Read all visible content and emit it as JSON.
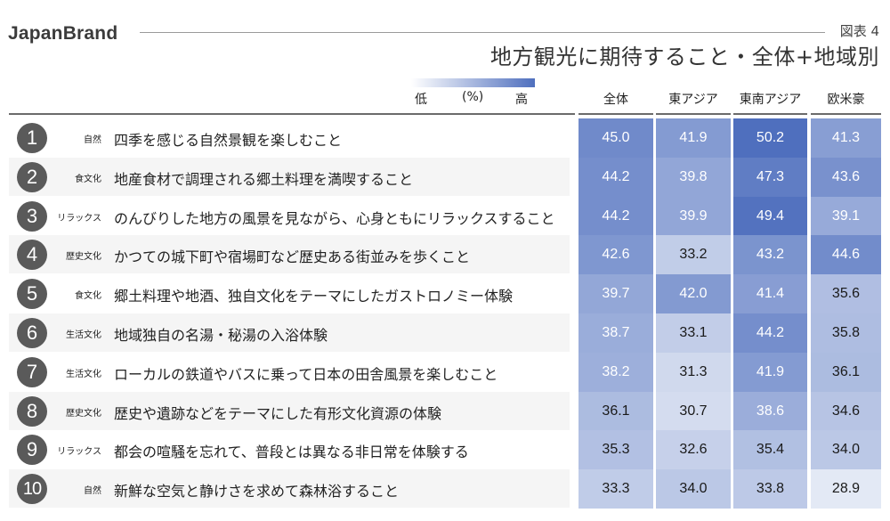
{
  "header": {
    "brand": "JapanBrand",
    "figure_label": "図表 4",
    "title": "地方観光に期待すること・全体+地域別"
  },
  "legend": {
    "low": "低",
    "unit": "(%)",
    "high": "高",
    "color_low": "#ffffff",
    "color_high": "#4f6fbe"
  },
  "columns": [
    "全体",
    "東アジア",
    "東南アジア",
    "欧米豪"
  ],
  "rows": [
    {
      "rank": "1",
      "category": "自然",
      "label": "四季を感じる自然景観を楽しむこと",
      "values": [
        "45.0",
        "41.9",
        "50.2",
        "41.3"
      ]
    },
    {
      "rank": "2",
      "category": "食文化",
      "label": "地産食材で調理される郷土料理を満喫すること",
      "values": [
        "44.2",
        "39.8",
        "47.3",
        "43.6"
      ]
    },
    {
      "rank": "3",
      "category": "リラックス",
      "label": "のんびりした地方の風景を見ながら、心身ともにリラックスすること",
      "values": [
        "44.2",
        "39.9",
        "49.4",
        "39.1"
      ]
    },
    {
      "rank": "4",
      "category": "歴史文化",
      "label": "かつての城下町や宿場町など歴史ある街並みを歩くこと",
      "values": [
        "42.6",
        "33.2",
        "43.2",
        "44.6"
      ]
    },
    {
      "rank": "5",
      "category": "食文化",
      "label": "郷土料理や地酒、独自文化をテーマにしたガストロノミー体験",
      "values": [
        "39.7",
        "42.0",
        "41.4",
        "35.6"
      ]
    },
    {
      "rank": "6",
      "category": "生活文化",
      "label": "地域独自の名湯・秘湯の入浴体験",
      "values": [
        "38.7",
        "33.1",
        "44.2",
        "35.8"
      ]
    },
    {
      "rank": "7",
      "category": "生活文化",
      "label": "ローカルの鉄道やバスに乗って日本の田舎風景を楽しむこと",
      "values": [
        "38.2",
        "31.3",
        "41.9",
        "36.1"
      ]
    },
    {
      "rank": "8",
      "category": "歴史文化",
      "label": "歴史や遺跡などをテーマにした有形文化資源の体験",
      "values": [
        "36.1",
        "30.7",
        "38.6",
        "34.6"
      ]
    },
    {
      "rank": "9",
      "category": "リラックス",
      "label": "都会の喧騒を忘れて、普段とは異なる非日常を体験する",
      "values": [
        "35.3",
        "32.6",
        "35.4",
        "34.0"
      ]
    },
    {
      "rank": "10",
      "category": "自然",
      "label": "新鮮な空気と静けさを求めて森林浴すること",
      "values": [
        "33.3",
        "34.0",
        "33.8",
        "28.9"
      ]
    }
  ],
  "chart_data": {
    "type": "heatmap",
    "title": "地方観光に期待すること・全体+地域別",
    "subtitle": "図表 4",
    "unit": "%",
    "legend": {
      "low": "低",
      "high": "高"
    },
    "columns": [
      "全体",
      "東アジア",
      "東南アジア",
      "欧米豪"
    ],
    "categories": [
      "四季を感じる自然景観を楽しむこと",
      "地産食材で調理される郷土料理を満喫すること",
      "のんびりした地方の風景を見ながら、心身ともにリラックスすること",
      "かつての城下町や宿場町など歴史ある街並みを歩くこと",
      "郷土料理や地酒、独自文化をテーマにしたガストロノミー体験",
      "地域独自の名湯・秘湯の入浴体験",
      "ローカルの鉄道やバスに乗って日本の田舎風景を楽しむこと",
      "歴史や遺跡などをテーマにした有形文化資源の体験",
      "都会の喧騒を忘れて、普段とは異なる非日常を体験する",
      "新鮮な空気と静けさを求めて森林浴すること"
    ],
    "row_tags": [
      "自然",
      "食文化",
      "リラックス",
      "歴史文化",
      "食文化",
      "生活文化",
      "生活文化",
      "歴史文化",
      "リラックス",
      "自然"
    ],
    "series": [
      {
        "name": "全体",
        "values": [
          45.0,
          44.2,
          44.2,
          42.6,
          39.7,
          38.7,
          38.2,
          36.1,
          35.3,
          33.3
        ]
      },
      {
        "name": "東アジア",
        "values": [
          41.9,
          39.8,
          39.9,
          33.2,
          42.0,
          33.1,
          31.3,
          30.7,
          32.6,
          34.0
        ]
      },
      {
        "name": "東南アジア",
        "values": [
          50.2,
          47.3,
          49.4,
          43.2,
          41.4,
          44.2,
          41.9,
          38.6,
          35.4,
          33.8
        ]
      },
      {
        "name": "欧米豪",
        "values": [
          41.3,
          43.6,
          39.1,
          44.6,
          35.6,
          35.8,
          36.1,
          34.6,
          34.0,
          28.9
        ]
      }
    ]
  }
}
